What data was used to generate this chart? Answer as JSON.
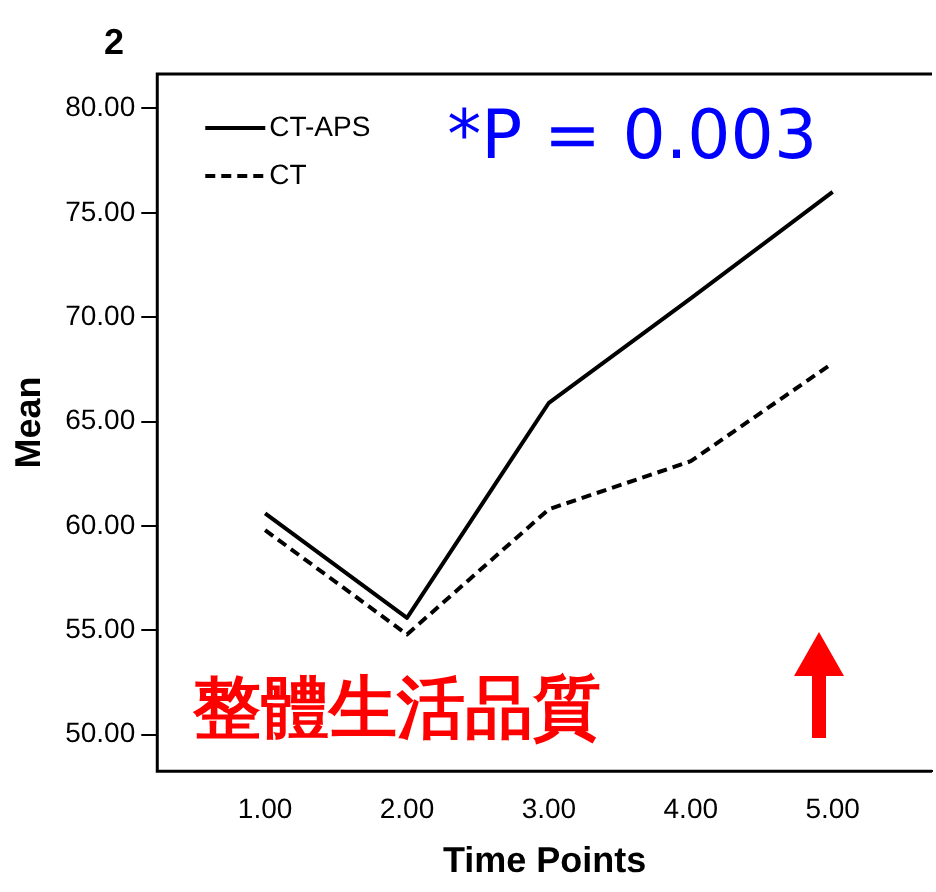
{
  "chart_data": {
    "type": "line",
    "title": "2",
    "xlabel": "Time Points",
    "ylabel": "Mean",
    "x": [
      1,
      2,
      3,
      4,
      5
    ],
    "series": [
      {
        "name": "CT-APS",
        "color": "#000000",
        "values": [
          60.6,
          55.6,
          65.9,
          70.9,
          76.0
        ],
        "line_style": "solid"
      },
      {
        "name": "CT",
        "color": "#000000",
        "values": [
          59.8,
          54.8,
          60.8,
          63.1,
          67.8
        ],
        "line_style": "dashed"
      }
    ],
    "xlim": [
      0.24,
      5.7
    ],
    "xticks": [
      {
        "value": 1,
        "label": "1.00"
      },
      {
        "value": 2,
        "label": "2.00"
      },
      {
        "value": 3,
        "label": "3.00"
      },
      {
        "value": 4,
        "label": "4.00"
      },
      {
        "value": 5,
        "label": "5.00"
      }
    ],
    "ylim": [
      48.25,
      81.65
    ],
    "yticks": [
      {
        "value": 50,
        "label": "50.00"
      },
      {
        "value": 55,
        "label": "55.00"
      },
      {
        "value": 60,
        "label": "60.00"
      },
      {
        "value": 65,
        "label": "65.00"
      },
      {
        "value": 70,
        "label": "70.00"
      },
      {
        "value": 75,
        "label": "75.00"
      },
      {
        "value": 80,
        "label": "80.00"
      }
    ],
    "grid": false,
    "legend": "top left",
    "marker": "none",
    "annotations": [
      "*P = 0.003",
      "整體生活品質"
    ]
  }
}
